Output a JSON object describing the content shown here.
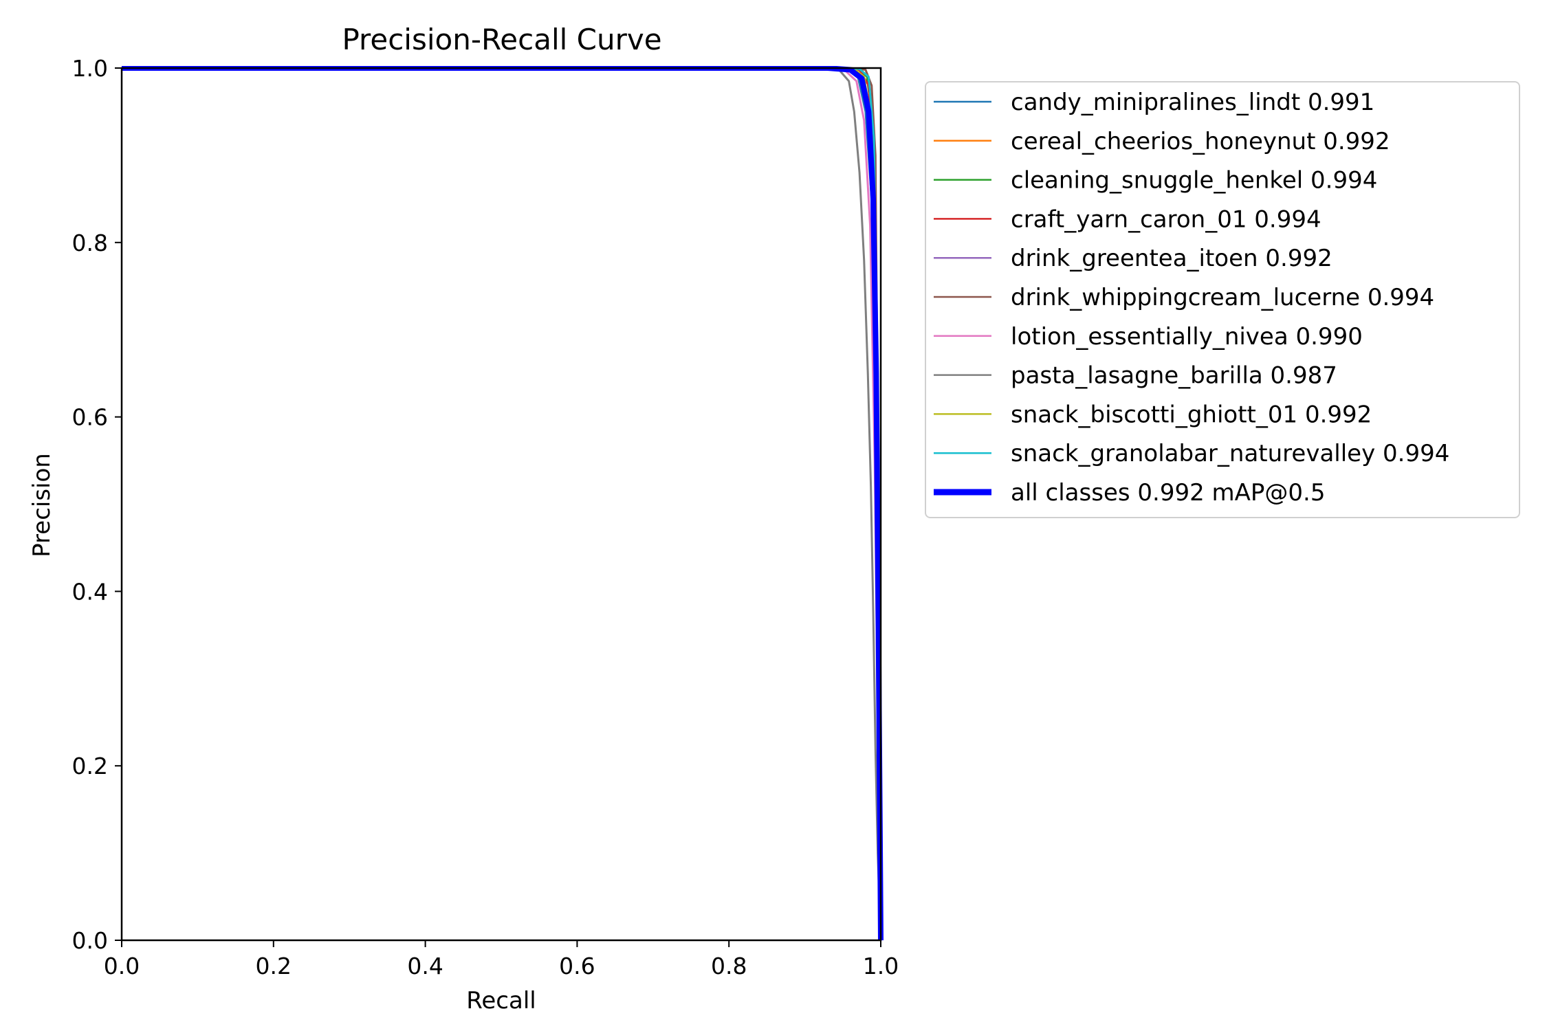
{
  "chart_data": {
    "type": "line",
    "title": "Precision-Recall Curve",
    "xlabel": "Recall",
    "ylabel": "Precision",
    "xlim": [
      0.0,
      1.0
    ],
    "ylim": [
      0.0,
      1.0
    ],
    "xticks": [
      "0.0",
      "0.2",
      "0.4",
      "0.6",
      "0.8",
      "1.0"
    ],
    "yticks": [
      "0.0",
      "0.2",
      "0.4",
      "0.6",
      "0.8",
      "1.0"
    ],
    "grid": false,
    "legend_position": "outside-right-top",
    "series": [
      {
        "name": "candy_minipralines_lindt 0.991",
        "color": "#1f77b4",
        "width": "thin",
        "points": [
          [
            0,
            1
          ],
          [
            0.92,
            1
          ],
          [
            0.955,
            0.999
          ],
          [
            0.97,
            0.99
          ],
          [
            0.98,
            0.95
          ],
          [
            0.988,
            0.85
          ],
          [
            0.993,
            0.6
          ],
          [
            0.996,
            0.3
          ],
          [
            0.998,
            0.1
          ],
          [
            1,
            0
          ]
        ]
      },
      {
        "name": "cereal_cheerios_honeynut 0.992",
        "color": "#ff7f0e",
        "width": "thin",
        "points": [
          [
            0,
            1
          ],
          [
            0.93,
            1
          ],
          [
            0.96,
            0.999
          ],
          [
            0.975,
            0.99
          ],
          [
            0.984,
            0.95
          ],
          [
            0.991,
            0.8
          ],
          [
            0.995,
            0.5
          ],
          [
            0.998,
            0.2
          ],
          [
            1,
            0
          ]
        ]
      },
      {
        "name": "cleaning_snuggle_henkel 0.994",
        "color": "#2ca02c",
        "width": "thin",
        "points": [
          [
            0,
            1
          ],
          [
            0.95,
            1
          ],
          [
            0.97,
            0.999
          ],
          [
            0.982,
            0.99
          ],
          [
            0.99,
            0.93
          ],
          [
            0.995,
            0.7
          ],
          [
            0.998,
            0.35
          ],
          [
            1,
            0
          ]
        ]
      },
      {
        "name": "craft_yarn_caron_01 0.994",
        "color": "#d62728",
        "width": "thin",
        "points": [
          [
            0,
            1
          ],
          [
            0.95,
            1
          ],
          [
            0.972,
            0.998
          ],
          [
            0.984,
            0.98
          ],
          [
            0.991,
            0.9
          ],
          [
            0.995,
            0.65
          ],
          [
            0.998,
            0.3
          ],
          [
            1,
            0
          ]
        ]
      },
      {
        "name": "drink_greentea_itoen 0.992",
        "color": "#9467bd",
        "width": "thin",
        "points": [
          [
            0,
            1
          ],
          [
            0.93,
            1
          ],
          [
            0.962,
            0.998
          ],
          [
            0.976,
            0.985
          ],
          [
            0.986,
            0.94
          ],
          [
            0.992,
            0.75
          ],
          [
            0.996,
            0.45
          ],
          [
            0.999,
            0.15
          ],
          [
            1,
            0
          ]
        ]
      },
      {
        "name": "drink_whippingcream_lucerne 0.994",
        "color": "#8c564b",
        "width": "thin",
        "points": [
          [
            0,
            1
          ],
          [
            0.96,
            1
          ],
          [
            0.98,
            0.998
          ],
          [
            0.988,
            0.98
          ],
          [
            0.993,
            0.9
          ],
          [
            0.996,
            0.6
          ],
          [
            0.999,
            0.2
          ],
          [
            1,
            0
          ]
        ]
      },
      {
        "name": "lotion_essentially_nivea 0.990",
        "color": "#e377c2",
        "width": "thin",
        "points": [
          [
            0,
            1
          ],
          [
            0.92,
            1
          ],
          [
            0.952,
            0.998
          ],
          [
            0.968,
            0.985
          ],
          [
            0.978,
            0.94
          ],
          [
            0.986,
            0.82
          ],
          [
            0.992,
            0.55
          ],
          [
            0.996,
            0.25
          ],
          [
            1,
            0
          ]
        ]
      },
      {
        "name": "pasta_lasagne_barilla 0.987",
        "color": "#7f7f7f",
        "width": "thin",
        "points": [
          [
            0,
            1
          ],
          [
            0.92,
            1
          ],
          [
            0.945,
            0.998
          ],
          [
            0.958,
            0.985
          ],
          [
            0.965,
            0.95
          ],
          [
            0.972,
            0.88
          ],
          [
            0.978,
            0.78
          ],
          [
            0.983,
            0.65
          ],
          [
            0.987,
            0.52
          ],
          [
            0.99,
            0.38
          ],
          [
            0.993,
            0.22
          ],
          [
            0.996,
            0.1
          ],
          [
            1,
            0
          ]
        ]
      },
      {
        "name": "snack_biscotti_ghiott_01 0.992",
        "color": "#bcbd22",
        "width": "thin",
        "points": [
          [
            0,
            1
          ],
          [
            0.94,
            1
          ],
          [
            0.965,
            0.999
          ],
          [
            0.978,
            0.99
          ],
          [
            0.987,
            0.94
          ],
          [
            0.992,
            0.78
          ],
          [
            0.996,
            0.45
          ],
          [
            0.999,
            0.15
          ],
          [
            1,
            0
          ]
        ]
      },
      {
        "name": "snack_granolabar_naturevalley 0.994",
        "color": "#17becf",
        "width": "thin",
        "points": [
          [
            0,
            1
          ],
          [
            0.95,
            1
          ],
          [
            0.972,
            0.999
          ],
          [
            0.984,
            0.99
          ],
          [
            0.991,
            0.92
          ],
          [
            0.995,
            0.68
          ],
          [
            0.998,
            0.3
          ],
          [
            1,
            0
          ]
        ]
      },
      {
        "name": "all classes 0.992 mAP@0.5",
        "color": "#0000ff",
        "width": "thick",
        "points": [
          [
            0,
            1
          ],
          [
            0.93,
            1
          ],
          [
            0.96,
            0.998
          ],
          [
            0.975,
            0.988
          ],
          [
            0.984,
            0.95
          ],
          [
            0.99,
            0.85
          ],
          [
            0.994,
            0.65
          ],
          [
            0.997,
            0.35
          ],
          [
            0.999,
            0.12
          ],
          [
            1,
            0
          ]
        ]
      }
    ]
  }
}
